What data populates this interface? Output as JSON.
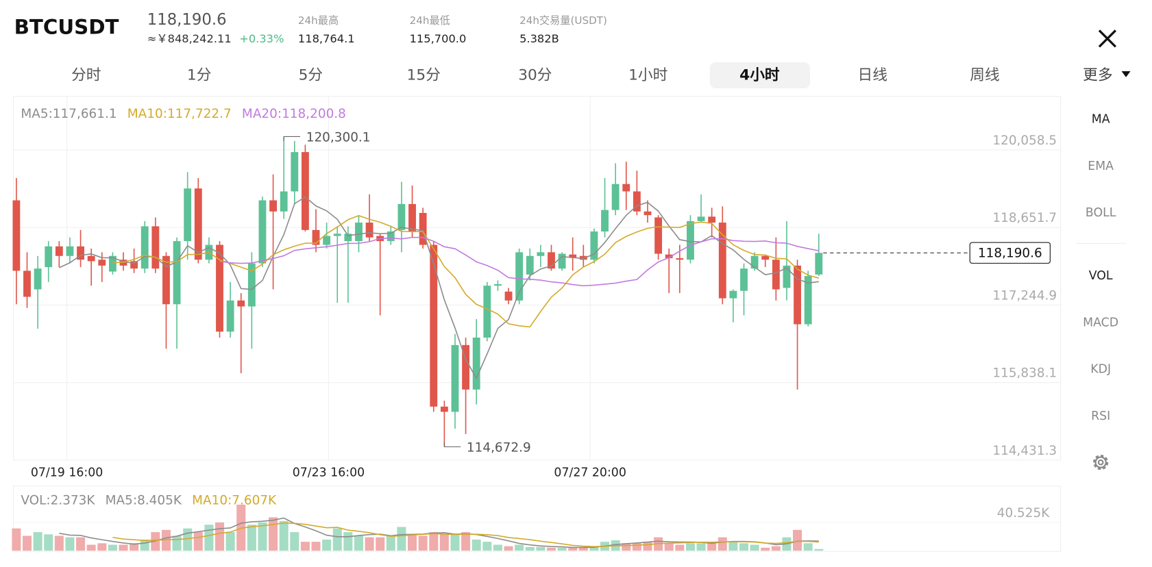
{
  "header": {
    "symbol": "BTCUSDT",
    "price": "118,190.6",
    "cny": "≈￥848,242.11",
    "change": "+0.33%",
    "stats": [
      {
        "label": "24h最高",
        "value": "118,764.1"
      },
      {
        "label": "24h最低",
        "value": "115,700.0"
      },
      {
        "label": "24h交易量(USDT)",
        "value": "5.382B"
      }
    ]
  },
  "tabs": [
    "分时",
    "1分",
    "5分",
    "15分",
    "30分",
    "1小时",
    "4小时",
    "日线",
    "周线"
  ],
  "active_tab": "4小时",
  "more": "更多",
  "indicators": {
    "main": [
      "MA",
      "EMA",
      "BOLL"
    ],
    "sub": [
      "VOL",
      "MACD",
      "KDJ",
      "RSI"
    ]
  },
  "chart_data": [
    {
      "type": "candlestick",
      "up_color": "#5cc196",
      "down_color": "#e0564a",
      "legend": [
        {
          "text": "MA5:117,661.1",
          "color": "#8c8c8c"
        },
        {
          "text": "MA10:117,722.7",
          "color": "#d4aa2a"
        },
        {
          "text": "MA20:118,200.8",
          "color": "#c27be0"
        }
      ],
      "xlim": [
        -0.28,
        97.6
      ],
      "xticks": [
        {
          "value": 4.72,
          "label": "07/19 16:00"
        },
        {
          "value": 29.18,
          "label": "07/23 16:00"
        },
        {
          "value": 53.63,
          "label": "07/27 20:00"
        }
      ],
      "ylim": [
        114431.3,
        121027.7
      ],
      "yticks": [
        {
          "value": 120058.5,
          "label": "120,058.5"
        },
        {
          "value": 118651.7,
          "label": "118,651.7"
        },
        {
          "value": 117244.9,
          "label": "117,244.9"
        },
        {
          "value": 115838.1,
          "label": "115,838.1"
        },
        {
          "value": 114431.3,
          "label": "114,431.3"
        }
      ],
      "grid": true,
      "high_label": "120,300.1",
      "low_label": "114,672.9",
      "last_label": "118,190.6",
      "open": [
        119144,
        117866,
        117529,
        117933,
        118309,
        118135,
        118309,
        118135,
        118067,
        117852,
        118067,
        118040,
        117906,
        118673,
        118135,
        117260,
        118404,
        119359,
        118067,
        118336,
        116762,
        117327,
        117219,
        118000,
        119144,
        118942,
        119306,
        120019,
        118606,
        118336,
        118498,
        118404,
        118404,
        118740,
        118498,
        118404,
        118606,
        119077,
        118915,
        118336,
        115402,
        115308,
        116519,
        115712,
        116654,
        117596,
        117489,
        117327,
        117798,
        118135,
        118202,
        117906,
        118161,
        118135,
        118067,
        118579,
        118969,
        119440,
        119306,
        118942,
        118834,
        118161,
        118094,
        118067,
        118767,
        118848,
        118740,
        117367,
        117502,
        117906,
        118135,
        118067,
        117556,
        117960,
        116896,
        117798
      ],
      "high": [
        119548,
        118202,
        118135,
        118404,
        118404,
        118471,
        118606,
        118269,
        118202,
        118202,
        118202,
        118269,
        118767,
        118834,
        118202,
        118471,
        119656,
        119548,
        118471,
        118404,
        117663,
        117462,
        118202,
        119211,
        119615,
        120300.1,
        120221,
        120153,
        118982,
        118740,
        118673,
        118673,
        118875,
        119252,
        118538,
        118673,
        119480,
        119413,
        119009,
        118404,
        115510,
        116721,
        116654,
        116990,
        117663,
        117690,
        117556,
        118269,
        118269,
        118336,
        118336,
        118202,
        118471,
        118336,
        118633,
        119548,
        119817,
        119844,
        119682,
        119144,
        118875,
        118269,
        118336,
        118875,
        119252,
        119009,
        119036,
        117529,
        118000,
        118202,
        118161,
        118471,
        118767,
        118067,
        117866,
        118538
      ],
      "low": [
        117260,
        117192,
        116816,
        117663,
        117933,
        118000,
        117933,
        117596,
        117663,
        117798,
        117866,
        117825,
        117825,
        117825,
        116452,
        116452,
        118067,
        118000,
        118000,
        116654,
        116654,
        116008,
        116452,
        117933,
        117529,
        118807,
        119077,
        118579,
        118202,
        118269,
        117287,
        117287,
        118202,
        118404,
        117058,
        118336,
        118202,
        118471,
        118269,
        115308,
        114672.9,
        115002,
        114904,
        115442,
        116587,
        117502,
        117260,
        117260,
        117690,
        117933,
        117866,
        117866,
        117866,
        117933,
        118000,
        118471,
        118875,
        118969,
        118875,
        118740,
        118067,
        117462,
        117462,
        118000,
        118740,
        118471,
        117260,
        116930,
        117058,
        117866,
        117933,
        117327,
        117327,
        115712,
        116856,
        117771
      ],
      "close": [
        117866,
        117394,
        117906,
        118309,
        118135,
        118309,
        118067,
        118040,
        117960,
        118135,
        117960,
        117906,
        118673,
        117906,
        117260,
        118404,
        119359,
        118067,
        118336,
        116762,
        117327,
        117219,
        118000,
        119144,
        118942,
        119306,
        120019,
        118606,
        118336,
        118498,
        118538,
        118538,
        118740,
        118471,
        118404,
        118579,
        119077,
        118579,
        118336,
        115402,
        115308,
        116519,
        115712,
        116654,
        117596,
        117623,
        117327,
        118202,
        118135,
        118202,
        117906,
        118175,
        118108,
        118067,
        118579,
        118969,
        119440,
        119306,
        118942,
        118875,
        118175,
        118094,
        118067,
        118767,
        118848,
        118740,
        117367,
        117502,
        117906,
        118135,
        118067,
        117529,
        117960,
        116896,
        117771,
        118190.6
      ]
    },
    {
      "type": "bar",
      "up_color": "#a5dcc4",
      "down_color": "#f0abab",
      "legend": [
        {
          "text": "VOL:2.373K",
          "color": "#8c8c8c"
        },
        {
          "text": "MA5:8.405K",
          "color": "#8c8c8c"
        },
        {
          "text": "MA10:7.607K",
          "color": "#d4aa2a"
        }
      ],
      "ylim": [
        0,
        92700
      ],
      "yticks": [
        {
          "value": 40525,
          "label": "40.525K"
        }
      ],
      "values": [
        31980,
        21320,
        26650,
        23452,
        21320,
        19188,
        19188,
        8528,
        10660,
        8528,
        8528,
        10660,
        15990,
        26650,
        29848,
        21320,
        31980,
        26650,
        37310,
        40508,
        26650,
        66092,
        37310,
        40508,
        47970,
        42640,
        26650,
        12792,
        12792,
        15990,
        31980,
        26650,
        21320,
        19188,
        19188,
        21320,
        34112,
        23452,
        21320,
        26650,
        23452,
        23452,
        26650,
        15990,
        12792,
        8528,
        6396,
        8528,
        5330,
        5330,
        4264,
        4264,
        4264,
        5330,
        6396,
        12792,
        14924,
        10660,
        10660,
        12792,
        19188,
        10660,
        8528,
        10660,
        10660,
        12792,
        19188,
        12792,
        10660,
        8528,
        4264,
        6396,
        19188,
        29848,
        10660,
        2373
      ]
    }
  ]
}
